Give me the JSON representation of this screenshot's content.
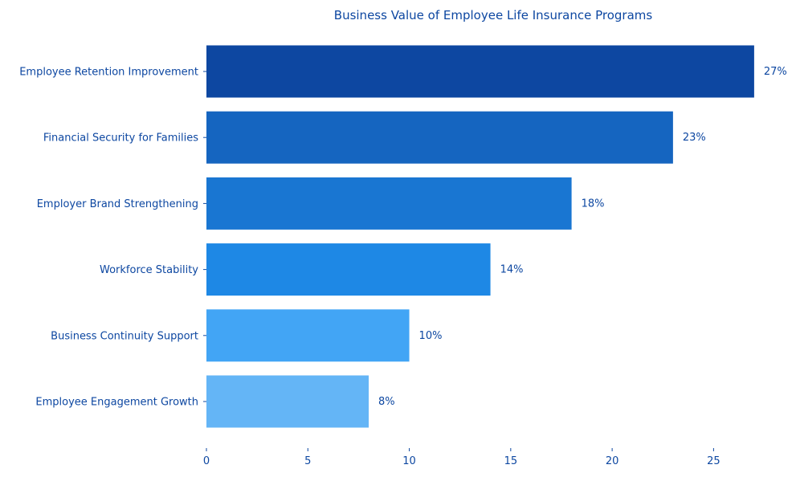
{
  "chart_data": {
    "type": "bar",
    "orientation": "horizontal",
    "title": "Business Value of Employee Life Insurance Programs",
    "xlabel": "",
    "ylabel": "",
    "categories": [
      "Employee Retention Improvement",
      "Financial Security for Families",
      "Employer Brand Strengthening",
      "Workforce Stability",
      "Business Continuity Support",
      "Employee Engagement Growth"
    ],
    "values": [
      27,
      23,
      18,
      14,
      10,
      8
    ],
    "data_labels": [
      "27%",
      "23%",
      "18%",
      "14%",
      "10%",
      "8%"
    ],
    "bar_colors": [
      "#0d47a1",
      "#1565c0",
      "#1976d2",
      "#1e88e5",
      "#42a5f5",
      "#64b5f6"
    ],
    "text_color": "#0d47a1",
    "xlim": [
      0,
      28.35
    ],
    "xticks": [
      0,
      5,
      10,
      15,
      20,
      25
    ],
    "grid": false,
    "legend": "none"
  }
}
